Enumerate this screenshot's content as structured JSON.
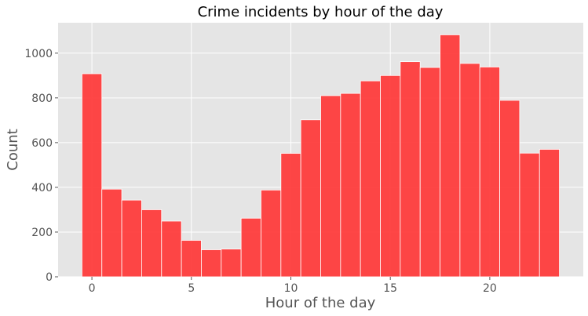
{
  "chart_data": {
    "type": "bar",
    "title": "Crime incidents by hour of the day",
    "xlabel": "Hour of the day",
    "ylabel": "Count",
    "categories": [
      0,
      1,
      2,
      3,
      4,
      5,
      6,
      7,
      8,
      9,
      10,
      11,
      12,
      13,
      14,
      15,
      16,
      17,
      18,
      19,
      20,
      21,
      22,
      23
    ],
    "values": [
      908,
      392,
      343,
      300,
      249,
      163,
      121,
      124,
      262,
      388,
      552,
      702,
      810,
      820,
      876,
      900,
      962,
      936,
      1082,
      954,
      938,
      789,
      553,
      570
    ],
    "xlim": [
      -1.7,
      24.7
    ],
    "ylim": [
      0,
      1136
    ],
    "xticks": [
      0,
      5,
      10,
      15,
      20
    ],
    "yticks": [
      0,
      200,
      400,
      600,
      800,
      1000
    ],
    "grid": true,
    "bar_color": "#ff3333",
    "background_color": "#e5e5e5",
    "grid_color": "#ffffff"
  }
}
